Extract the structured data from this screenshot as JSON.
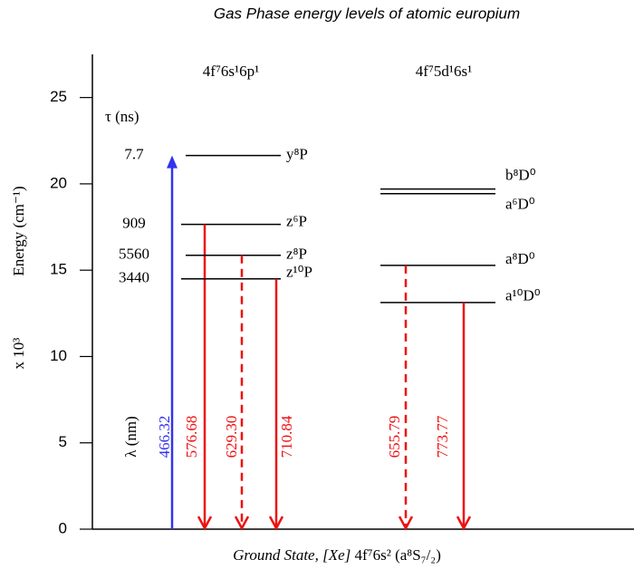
{
  "title": "Gas Phase energy levels of atomic europium",
  "axis": {
    "label": "Energy (cm⁻¹)",
    "multiplier": "x 10³",
    "ylim": [
      0,
      27.5
    ],
    "yticks": [
      0,
      5,
      10,
      15,
      20,
      25
    ]
  },
  "lifetime_header": "τ (ns)",
  "wavelength_header": "λ (nm)",
  "configurations": [
    {
      "label": "4f⁷6s¹6p¹",
      "levels": [
        {
          "label": "y⁸P",
          "energy": 21.64,
          "lifetime": "7.7",
          "wavelength": "466.32",
          "color": "#3333ee",
          "line": "solid"
        },
        {
          "label": "z⁶P",
          "energy": 17.65,
          "lifetime": "909",
          "wavelength": "576.68",
          "color": "#ee1111",
          "line": "solid"
        },
        {
          "label": "z⁸P",
          "energy": 15.86,
          "lifetime": "5560",
          "wavelength": "629.30",
          "color": "#ee1111",
          "line": "dashed"
        },
        {
          "label": "z¹⁰P",
          "energy": 14.5,
          "lifetime": "3440",
          "wavelength": "710.84",
          "color": "#ee1111",
          "line": "solid"
        }
      ]
    },
    {
      "label": "4f⁷5d¹6s¹",
      "levels": [
        {
          "label": "b⁸D⁰",
          "energy": 19.7
        },
        {
          "label": "a⁶D⁰",
          "energy": 19.43
        },
        {
          "label": "a⁸D⁰",
          "energy": 15.28,
          "wavelength": "655.79",
          "color": "#ee1111",
          "line": "dashed"
        },
        {
          "label": "a¹⁰D⁰",
          "energy": 13.13,
          "wavelength": "773.77",
          "color": "#ee1111",
          "line": "solid"
        }
      ]
    }
  ],
  "ground_state": {
    "prefix": "Ground State, [Xe]",
    "term": "4f⁷6s² (a⁸S₇/₂)"
  }
}
